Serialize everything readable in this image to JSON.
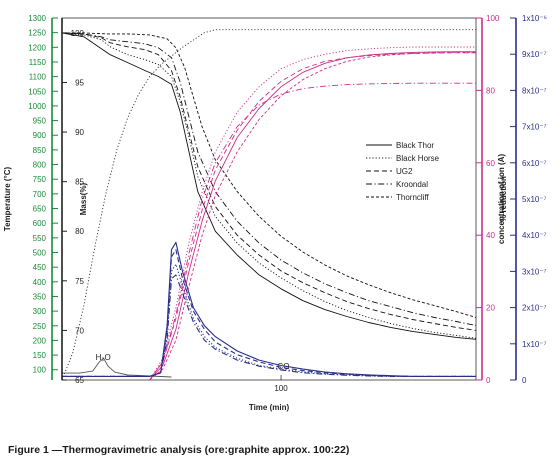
{
  "caption": "Figure 1 —Thermogravimetric analysis (ore:graphite approx. 100:22)",
  "chart_data": {
    "type": "line",
    "title": "",
    "xlabel": "Time (min)",
    "x_ticks": [
      100
    ],
    "axes": {
      "temperature": {
        "label": "Temperature (°C)",
        "range": [
          65,
          1300
        ],
        "ticks": [
          100,
          150,
          200,
          250,
          300,
          350,
          400,
          450,
          500,
          550,
          600,
          650,
          700,
          750,
          800,
          850,
          900,
          950,
          1000,
          1050,
          1100,
          1150,
          1200,
          1250,
          1300
        ],
        "color": "#1a8a3a"
      },
      "mass": {
        "label": "Mass(%)",
        "range": [
          65,
          101.5
        ],
        "ticks": [
          65,
          70,
          75,
          80,
          85,
          90,
          95,
          100
        ],
        "color": "#222222"
      },
      "reduction": {
        "label": "% reduction",
        "range": [
          0,
          100
        ],
        "ticks": [
          0,
          20,
          40,
          60,
          80,
          100
        ],
        "color": "#cc2e8c"
      },
      "ion": {
        "label": "concentration of ion (A)",
        "range": [
          0,
          10
        ],
        "ticks": [
          "0",
          "1x10⁻⁷",
          "2x10⁻⁷",
          "3x10⁻⁷",
          "4x10⁻⁷",
          "5x10⁻⁷",
          "6x10⁻⁷",
          "7x10⁻⁷",
          "8x10⁻⁷",
          "9x10⁻⁷",
          "1x10⁻⁶"
        ],
        "color": "#2a2f8a"
      }
    },
    "legend": {
      "placement": "right",
      "entries": [
        {
          "name": "Black Thor",
          "dash": "solid"
        },
        {
          "name": "Black Horse",
          "dash": "dot"
        },
        {
          "name": "UG2",
          "dash": "dash"
        },
        {
          "name": "Kroondal",
          "dash": "dashdot"
        },
        {
          "name": "Thorncliff",
          "dash": "shortdash"
        }
      ]
    },
    "annotations": [
      {
        "text": "H₂O",
        "x": 19,
        "mass": 66.6
      },
      {
        "text": "CO",
        "x": 102,
        "mass": 65.7
      }
    ],
    "series": [
      {
        "name": "Black Thor",
        "axis": "mass",
        "dash": "solid",
        "color": "#111111",
        "x": [
          0,
          10,
          18,
          22,
          30,
          38,
          44,
          50,
          54,
          58,
          62,
          70,
          80,
          90,
          100,
          110,
          120,
          130,
          140,
          150,
          160,
          170,
          180,
          189
        ],
        "y": [
          100,
          99.6,
          98.4,
          97.8,
          97,
          96.2,
          95.6,
          94.8,
          92,
          88,
          84,
          80,
          77.6,
          75.6,
          74.2,
          73,
          72.1,
          71.4,
          70.8,
          70.3,
          69.9,
          69.6,
          69.3,
          69.1
        ]
      },
      {
        "name": "Black Horse",
        "axis": "mass",
        "dash": "dot",
        "color": "#111111",
        "x": [
          0,
          10,
          18,
          22,
          30,
          38,
          44,
          50,
          54,
          58,
          62,
          70,
          80,
          90,
          100,
          110,
          120,
          130,
          140,
          150,
          160,
          170,
          180,
          189
        ],
        "y": [
          100,
          99.8,
          99.3,
          98.6,
          97.8,
          97.3,
          96.8,
          95.6,
          93,
          89.5,
          85.5,
          81.5,
          78.8,
          76.8,
          75.3,
          74,
          72.9,
          72,
          71.3,
          70.7,
          70.2,
          69.8,
          69.5,
          69.2
        ]
      },
      {
        "name": "UG2",
        "axis": "mass",
        "dash": "dash",
        "color": "#111111",
        "x": [
          0,
          10,
          18,
          22,
          30,
          38,
          44,
          50,
          54,
          58,
          62,
          70,
          80,
          90,
          100,
          110,
          120,
          130,
          140,
          150,
          160,
          170,
          180,
          189
        ],
        "y": [
          100,
          99.9,
          99.5,
          99,
          98.6,
          98.3,
          97.8,
          96.2,
          93.5,
          90,
          86.5,
          82.5,
          79.6,
          77.6,
          76,
          74.8,
          73.8,
          72.9,
          72.2,
          71.6,
          71.1,
          70.7,
          70.3,
          70
        ]
      },
      {
        "name": "Kroondal",
        "axis": "mass",
        "dash": "dashdot",
        "color": "#111111",
        "x": [
          0,
          10,
          18,
          22,
          30,
          38,
          44,
          50,
          54,
          58,
          62,
          70,
          80,
          90,
          100,
          110,
          120,
          130,
          140,
          150,
          160,
          170,
          180,
          189
        ],
        "y": [
          100,
          99.9,
          99.6,
          99.3,
          99.1,
          98.9,
          98.5,
          97.5,
          95,
          91.5,
          88,
          84,
          81,
          78.8,
          77.1,
          75.8,
          74.7,
          73.8,
          73,
          72.4,
          71.8,
          71.3,
          70.9,
          70.5
        ]
      },
      {
        "name": "Thorncliff",
        "axis": "mass",
        "dash": "shortdash",
        "color": "#111111",
        "x": [
          0,
          10,
          20,
          30,
          40,
          48,
          52,
          56,
          60,
          64,
          70,
          80,
          90,
          100,
          110,
          120,
          130,
          140,
          150,
          160,
          170,
          180,
          189
        ],
        "y": [
          100,
          100,
          99.9,
          99.9,
          99.8,
          99.4,
          98.5,
          96.5,
          93.5,
          90.5,
          87.2,
          84,
          81.5,
          79.5,
          77.9,
          76.6,
          75.5,
          74.6,
          73.8,
          73.1,
          72.5,
          71.9,
          71.3
        ]
      },
      {
        "name": "Temperature",
        "axis": "temperature",
        "dash": "dot",
        "color": "#333333",
        "x": [
          0,
          5,
          10,
          15,
          20,
          25,
          30,
          35,
          40,
          45,
          50,
          55,
          60,
          65,
          70,
          100,
          150,
          189
        ],
        "y": [
          65,
          160,
          320,
          520,
          700,
          850,
          960,
          1040,
          1100,
          1140,
          1170,
          1200,
          1225,
          1250,
          1260,
          1260,
          1260,
          1260
        ]
      },
      {
        "name": "Black Thor",
        "axis": "reduction",
        "dash": "solid",
        "color": "#cc2e8c",
        "x": [
          40,
          46,
          52,
          58,
          64,
          70,
          80,
          90,
          100,
          110,
          120,
          130,
          140,
          150,
          160,
          170,
          180,
          189
        ],
        "y": [
          0,
          4,
          14,
          30,
          44,
          55,
          67,
          75,
          81,
          85,
          87.5,
          89,
          89.8,
          90.2,
          90.5,
          90.6,
          90.7,
          90.7
        ]
      },
      {
        "name": "Black Horse",
        "axis": "reduction",
        "dash": "dot",
        "color": "#cc2e8c",
        "x": [
          40,
          46,
          52,
          58,
          64,
          70,
          80,
          90,
          100,
          110,
          120,
          130,
          140,
          150,
          160,
          170,
          180,
          189
        ],
        "y": [
          0,
          6,
          20,
          38,
          52,
          63,
          74,
          81,
          86,
          88.5,
          90,
          91,
          91.5,
          91.8,
          92,
          92,
          92,
          92
        ]
      },
      {
        "name": "UG2",
        "axis": "reduction",
        "dash": "dash",
        "color": "#cc2e8c",
        "x": [
          40,
          46,
          52,
          58,
          64,
          70,
          80,
          90,
          100,
          110,
          120,
          130,
          140,
          150,
          160,
          170,
          180,
          189
        ],
        "y": [
          0,
          5,
          17,
          33,
          47,
          58,
          69,
          77,
          82.5,
          86,
          88,
          89,
          89.6,
          90,
          90.2,
          90.3,
          90.4,
          90.4
        ]
      },
      {
        "name": "Kroondal",
        "axis": "reduction",
        "dash": "dashdot",
        "color": "#cc2e8c",
        "x": [
          40,
          46,
          52,
          58,
          64,
          70,
          80,
          90,
          100,
          110,
          120,
          130,
          140,
          150,
          160,
          170,
          180,
          189
        ],
        "y": [
          0,
          5,
          18,
          35,
          50,
          60,
          70,
          76,
          79,
          80.5,
          81.2,
          81.6,
          81.8,
          81.9,
          82,
          82,
          82,
          82
        ]
      },
      {
        "name": "Thorncliff",
        "axis": "reduction",
        "dash": "shortdash",
        "color": "#cc2e8c",
        "x": [
          40,
          46,
          52,
          58,
          64,
          70,
          80,
          90,
          100,
          110,
          120,
          130,
          140,
          150,
          160,
          170,
          180,
          189
        ],
        "y": [
          0,
          3,
          11,
          26,
          40,
          51,
          63,
          72,
          78.5,
          83,
          86,
          88,
          89.2,
          89.8,
          90.2,
          90.4,
          90.5,
          90.5
        ]
      },
      {
        "name": "H₂O",
        "axis": "mass",
        "dash": "solid",
        "color": "#555555",
        "x": [
          0,
          8,
          14,
          17,
          19,
          21,
          24,
          30,
          40,
          50
        ],
        "y": [
          65.7,
          65.7,
          65.9,
          66.8,
          67.2,
          66.4,
          65.8,
          65.5,
          65.4,
          65.3
        ]
      },
      {
        "name": "Black Thor",
        "axis": "ion",
        "dash": "solid",
        "color": "#2a2f8a",
        "x": [
          0,
          40,
          45,
          48,
          50,
          52,
          55,
          60,
          65,
          70,
          80,
          90,
          100,
          110,
          120,
          130,
          140,
          150,
          160,
          170,
          180,
          189
        ],
        "y": [
          0.1,
          0.1,
          0.2,
          1.5,
          3.6,
          3.8,
          3,
          2,
          1.5,
          1.2,
          0.8,
          0.55,
          0.4,
          0.3,
          0.22,
          0.17,
          0.14,
          0.12,
          0.1,
          0.1,
          0.1,
          0.1
        ]
      },
      {
        "name": "Black Horse",
        "axis": "ion",
        "dash": "dot",
        "color": "#2a2f8a",
        "x": [
          0,
          40,
          45,
          48,
          50,
          52,
          55,
          60,
          65,
          70,
          80,
          90,
          100,
          110,
          120,
          130,
          140,
          150,
          160,
          170,
          180,
          189
        ],
        "y": [
          0.1,
          0.1,
          0.2,
          1.2,
          3,
          3.2,
          2.6,
          1.7,
          1.2,
          0.9,
          0.6,
          0.4,
          0.3,
          0.22,
          0.17,
          0.14,
          0.12,
          0.1,
          0.1,
          0.1,
          0.1,
          0.1
        ]
      },
      {
        "name": "UG2",
        "axis": "ion",
        "dash": "dash",
        "color": "#2a2f8a",
        "x": [
          0,
          40,
          45,
          48,
          50,
          52,
          55,
          60,
          65,
          70,
          80,
          90,
          100,
          110,
          120,
          130,
          140,
          150,
          160,
          170,
          180,
          189
        ],
        "y": [
          0.1,
          0.1,
          0.2,
          1.4,
          3.4,
          3.6,
          2.8,
          1.9,
          1.4,
          1.05,
          0.7,
          0.5,
          0.35,
          0.26,
          0.2,
          0.16,
          0.13,
          0.11,
          0.1,
          0.1,
          0.1,
          0.1
        ]
      },
      {
        "name": "Kroondal",
        "axis": "ion",
        "dash": "dashdot",
        "color": "#2a2f8a",
        "x": [
          0,
          40,
          45,
          48,
          50,
          52,
          55,
          60,
          65,
          70,
          80,
          90,
          100,
          110,
          120,
          130,
          140,
          150,
          160,
          170,
          180,
          189
        ],
        "y": [
          0.1,
          0.1,
          0.2,
          1.1,
          2.8,
          2.9,
          2.4,
          1.6,
          1.1,
          0.85,
          0.55,
          0.38,
          0.28,
          0.2,
          0.16,
          0.13,
          0.11,
          0.1,
          0.1,
          0.1,
          0.1,
          0.1
        ]
      }
    ]
  }
}
